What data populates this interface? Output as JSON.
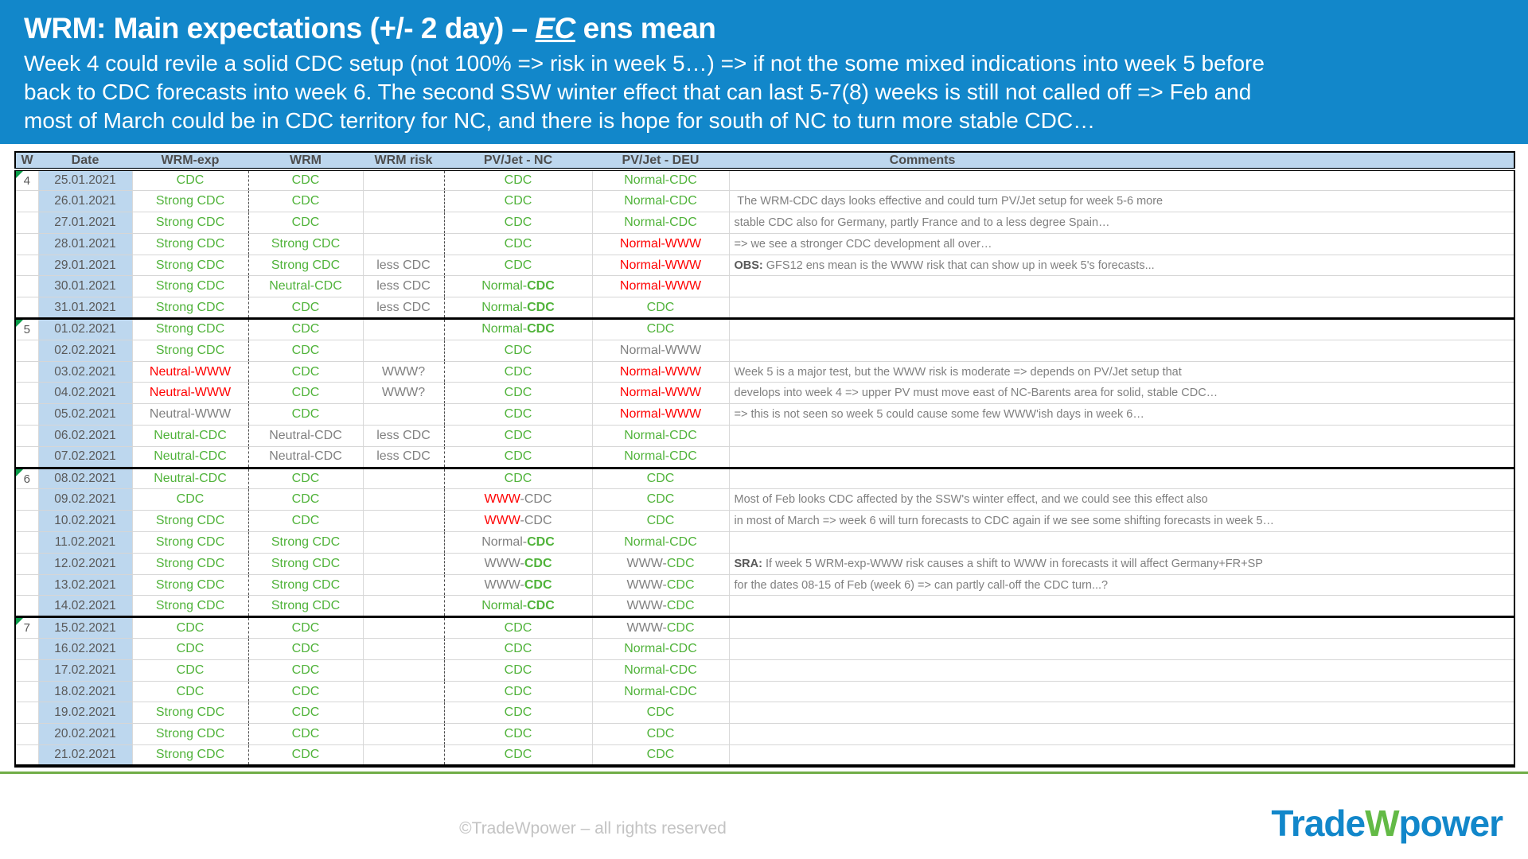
{
  "header": {
    "title_prefix": "WRM: Main expectations (+/- 2 day) – ",
    "title_ec": "EC",
    "title_suffix": " ens mean",
    "subtitle_lines": [
      "Week 4 could revile a solid CDC setup (not 100% => risk in week 5…) => if not the  some mixed indications into week 5 before",
      "back to CDC forecasts into week 6. The second SSW winter effect that can last 5-7(8) weeks is still not called off => Feb and",
      "most of March could be in CDC territory for NC, and there is hope for south of NC to turn more stable CDC…"
    ]
  },
  "colors": {
    "accent_blue": "#1287ca",
    "header_fill_light_blue": "#bdd7ee",
    "value_green": "#50b33a",
    "value_red": "#ff0000",
    "value_gray": "#808080",
    "text_dark_gray": "#595959",
    "footer_rule_green": "#70ad47",
    "logo_green": "#63ba46"
  },
  "table": {
    "columns": [
      "W",
      "Date",
      "WRM-exp",
      "WRM",
      "WRM risk",
      "PV/Jet - NC",
      "PV/Jet - DEU",
      "Comments"
    ],
    "rows": [
      {
        "w": "4",
        "ws": true,
        "date": "25.01.2021",
        "exp": [
          [
            "CDC",
            "g"
          ]
        ],
        "wrm": [
          [
            "CDC",
            "g"
          ]
        ],
        "risk": [],
        "nc": [
          [
            "CDC",
            "g"
          ]
        ],
        "deu": [
          [
            "Normal-CDC",
            "g"
          ]
        ],
        "com": []
      },
      {
        "w": "",
        "ws": false,
        "date": "26.01.2021",
        "exp": [
          [
            "Strong CDC",
            "g"
          ]
        ],
        "wrm": [
          [
            "CDC",
            "g"
          ]
        ],
        "risk": [],
        "nc": [
          [
            "CDC",
            "g"
          ]
        ],
        "deu": [
          [
            "Normal-CDC",
            "g"
          ]
        ],
        "com": [
          [
            " The WRM-CDC days looks effective and could turn PV/Jet setup for week 5-6 more",
            "y"
          ]
        ]
      },
      {
        "w": "",
        "ws": false,
        "date": "27.01.2021",
        "exp": [
          [
            "Strong CDC",
            "g"
          ]
        ],
        "wrm": [
          [
            "CDC",
            "g"
          ]
        ],
        "risk": [],
        "nc": [
          [
            "CDC",
            "g"
          ]
        ],
        "deu": [
          [
            "Normal-CDC",
            "g"
          ]
        ],
        "com": [
          [
            "stable CDC also for Germany, partly France and to a less degree Spain…",
            "y"
          ]
        ]
      },
      {
        "w": "",
        "ws": false,
        "date": "28.01.2021",
        "exp": [
          [
            "Strong CDC",
            "g"
          ]
        ],
        "wrm": [
          [
            "Strong CDC",
            "g"
          ]
        ],
        "risk": [],
        "nc": [
          [
            "CDC",
            "g"
          ]
        ],
        "deu": [
          [
            "Normal-WWW",
            "r"
          ]
        ],
        "com": [
          [
            "=> we see a stronger CDC development all over…",
            "y"
          ]
        ]
      },
      {
        "w": "",
        "ws": false,
        "date": "29.01.2021",
        "exp": [
          [
            "Strong CDC",
            "g"
          ]
        ],
        "wrm": [
          [
            "Strong CDC",
            "g"
          ]
        ],
        "risk": [
          [
            "less CDC",
            "y"
          ]
        ],
        "nc": [
          [
            "CDC",
            "g"
          ]
        ],
        "deu": [
          [
            "Normal-WWW",
            "r"
          ]
        ],
        "com": [
          [
            "OBS:",
            "d",
            true
          ],
          [
            " GFS12 ens mean is the WWW risk that can show up in week 5's forecasts...",
            "y"
          ]
        ]
      },
      {
        "w": "",
        "ws": false,
        "date": "30.01.2021",
        "exp": [
          [
            "Strong CDC",
            "g"
          ]
        ],
        "wrm": [
          [
            "Neutral-CDC",
            "g"
          ]
        ],
        "risk": [
          [
            "less CDC",
            "y"
          ]
        ],
        "nc": [
          [
            "Normal-",
            "g"
          ],
          [
            "CDC",
            "g",
            true
          ]
        ],
        "deu": [
          [
            "Normal-WWW",
            "r"
          ]
        ],
        "com": []
      },
      {
        "w": "",
        "ws": false,
        "date": "31.01.2021",
        "exp": [
          [
            "Strong CDC",
            "g"
          ]
        ],
        "wrm": [
          [
            "CDC",
            "g"
          ]
        ],
        "risk": [
          [
            "less CDC",
            "y"
          ]
        ],
        "nc": [
          [
            "Normal-",
            "g"
          ],
          [
            "CDC",
            "g",
            true
          ]
        ],
        "deu": [
          [
            "CDC",
            "g"
          ]
        ],
        "com": []
      },
      {
        "w": "5",
        "ws": true,
        "date": "01.02.2021",
        "exp": [
          [
            "Strong CDC",
            "g"
          ]
        ],
        "wrm": [
          [
            "CDC",
            "g"
          ]
        ],
        "risk": [],
        "nc": [
          [
            "Normal-",
            "g"
          ],
          [
            "CDC",
            "g",
            true
          ]
        ],
        "deu": [
          [
            "CDC",
            "g"
          ]
        ],
        "com": []
      },
      {
        "w": "",
        "ws": false,
        "date": "02.02.2021",
        "exp": [
          [
            "Strong CDC",
            "g"
          ]
        ],
        "wrm": [
          [
            "CDC",
            "g"
          ]
        ],
        "risk": [],
        "nc": [
          [
            "CDC",
            "g"
          ]
        ],
        "deu": [
          [
            "Normal-WWW",
            "y"
          ]
        ],
        "com": []
      },
      {
        "w": "",
        "ws": false,
        "date": "03.02.2021",
        "exp": [
          [
            "Neutral-WWW",
            "r"
          ]
        ],
        "wrm": [
          [
            "CDC",
            "g"
          ]
        ],
        "risk": [
          [
            "WWW?",
            "y"
          ]
        ],
        "nc": [
          [
            "CDC",
            "g"
          ]
        ],
        "deu": [
          [
            "Normal-WWW",
            "r"
          ]
        ],
        "com": [
          [
            "Week 5 is a major test, but the WWW risk is moderate => depends on PV/Jet setup that",
            "y"
          ]
        ]
      },
      {
        "w": "",
        "ws": false,
        "date": "04.02.2021",
        "exp": [
          [
            "Neutral-WWW",
            "r"
          ]
        ],
        "wrm": [
          [
            "CDC",
            "g"
          ]
        ],
        "risk": [
          [
            "WWW?",
            "y"
          ]
        ],
        "nc": [
          [
            "CDC",
            "g"
          ]
        ],
        "deu": [
          [
            "Normal-WWW",
            "r"
          ]
        ],
        "com": [
          [
            "develops into week 4 => upper PV must move east of NC-Barents area for solid, stable CDC…",
            "y"
          ]
        ]
      },
      {
        "w": "",
        "ws": false,
        "date": "05.02.2021",
        "exp": [
          [
            "Neutral-WWW",
            "y"
          ]
        ],
        "wrm": [
          [
            "CDC",
            "g"
          ]
        ],
        "risk": [],
        "nc": [
          [
            "CDC",
            "g"
          ]
        ],
        "deu": [
          [
            "Normal-WWW",
            "r"
          ]
        ],
        "com": [
          [
            "=> this is not seen so week 5 could cause some few WWW'ish days in week 6…",
            "y"
          ]
        ]
      },
      {
        "w": "",
        "ws": false,
        "date": "06.02.2021",
        "exp": [
          [
            "Neutral-CDC",
            "g"
          ]
        ],
        "wrm": [
          [
            "Neutral-CDC",
            "y"
          ]
        ],
        "risk": [
          [
            "less CDC",
            "y"
          ]
        ],
        "nc": [
          [
            "CDC",
            "g"
          ]
        ],
        "deu": [
          [
            "Normal-CDC",
            "g"
          ]
        ],
        "com": []
      },
      {
        "w": "",
        "ws": false,
        "date": "07.02.2021",
        "exp": [
          [
            "Neutral-CDC",
            "g"
          ]
        ],
        "wrm": [
          [
            "Neutral-CDC",
            "y"
          ]
        ],
        "risk": [
          [
            "less CDC",
            "y"
          ]
        ],
        "nc": [
          [
            "CDC",
            "g"
          ]
        ],
        "deu": [
          [
            "Normal-CDC",
            "g"
          ]
        ],
        "com": []
      },
      {
        "w": "6",
        "ws": true,
        "date": "08.02.2021",
        "exp": [
          [
            "Neutral-CDC",
            "g"
          ]
        ],
        "wrm": [
          [
            "CDC",
            "g"
          ]
        ],
        "risk": [],
        "nc": [
          [
            "CDC",
            "g"
          ]
        ],
        "deu": [
          [
            "CDC",
            "g"
          ]
        ],
        "com": []
      },
      {
        "w": "",
        "ws": false,
        "date": "09.02.2021",
        "exp": [
          [
            "CDC",
            "g"
          ]
        ],
        "wrm": [
          [
            "CDC",
            "g"
          ]
        ],
        "risk": [],
        "nc": [
          [
            "WWW",
            "r"
          ],
          [
            "-CDC",
            "y"
          ]
        ],
        "deu": [
          [
            "CDC",
            "g"
          ]
        ],
        "com": [
          [
            "Most of Feb looks CDC affected by the SSW's winter effect, and we could see this effect also",
            "y"
          ]
        ]
      },
      {
        "w": "",
        "ws": false,
        "date": "10.02.2021",
        "exp": [
          [
            "Strong CDC",
            "g"
          ]
        ],
        "wrm": [
          [
            "CDC",
            "g"
          ]
        ],
        "risk": [],
        "nc": [
          [
            "WWW",
            "r"
          ],
          [
            "-CDC",
            "y"
          ]
        ],
        "deu": [
          [
            "CDC",
            "g"
          ]
        ],
        "com": [
          [
            "in most of March => week 6 will turn forecasts to CDC again if we see some shifting forecasts in week 5…",
            "y"
          ]
        ]
      },
      {
        "w": "",
        "ws": false,
        "date": "11.02.2021",
        "exp": [
          [
            "Strong CDC",
            "g"
          ]
        ],
        "wrm": [
          [
            "Strong CDC",
            "g"
          ]
        ],
        "risk": [],
        "nc": [
          [
            "Normal-",
            "y"
          ],
          [
            "CDC",
            "g",
            true
          ]
        ],
        "deu": [
          [
            "Normal-CDC",
            "g"
          ]
        ],
        "com": []
      },
      {
        "w": "",
        "ws": false,
        "date": "12.02.2021",
        "exp": [
          [
            "Strong CDC",
            "g"
          ]
        ],
        "wrm": [
          [
            "Strong CDC",
            "g"
          ]
        ],
        "risk": [],
        "nc": [
          [
            "WWW-",
            "y"
          ],
          [
            "CDC",
            "g",
            true
          ]
        ],
        "deu": [
          [
            "WWW-",
            "y"
          ],
          [
            "CDC",
            "g"
          ]
        ],
        "com": [
          [
            "SRA:",
            "d",
            true
          ],
          [
            " If week 5 WRM-exp-WWW risk causes a shift to WWW in forecasts it will affect Germany+FR+SP",
            "y"
          ]
        ]
      },
      {
        "w": "",
        "ws": false,
        "date": "13.02.2021",
        "exp": [
          [
            "Strong CDC",
            "g"
          ]
        ],
        "wrm": [
          [
            "Strong CDC",
            "g"
          ]
        ],
        "risk": [],
        "nc": [
          [
            "WWW-",
            "y"
          ],
          [
            "CDC",
            "g",
            true
          ]
        ],
        "deu": [
          [
            "WWW-",
            "y"
          ],
          [
            "CDC",
            "g"
          ]
        ],
        "com": [
          [
            "for the dates 08-15 of Feb (week 6) => can partly call-off the CDC turn...?",
            "y"
          ]
        ]
      },
      {
        "w": "",
        "ws": false,
        "date": "14.02.2021",
        "exp": [
          [
            "Strong CDC",
            "g"
          ]
        ],
        "wrm": [
          [
            "Strong CDC",
            "g"
          ]
        ],
        "risk": [],
        "nc": [
          [
            "Normal-",
            "g"
          ],
          [
            "CDC",
            "g",
            true
          ]
        ],
        "deu": [
          [
            "WWW-",
            "y"
          ],
          [
            "CDC",
            "g"
          ]
        ],
        "com": []
      },
      {
        "w": "7",
        "ws": true,
        "date": "15.02.2021",
        "exp": [
          [
            "CDC",
            "g"
          ]
        ],
        "wrm": [
          [
            "CDC",
            "g"
          ]
        ],
        "risk": [],
        "nc": [
          [
            "CDC",
            "g"
          ]
        ],
        "deu": [
          [
            "WWW-",
            "y"
          ],
          [
            "CDC",
            "g"
          ]
        ],
        "com": []
      },
      {
        "w": "",
        "ws": false,
        "date": "16.02.2021",
        "exp": [
          [
            "CDC",
            "g"
          ]
        ],
        "wrm": [
          [
            "CDC",
            "g"
          ]
        ],
        "risk": [],
        "nc": [
          [
            "CDC",
            "g"
          ]
        ],
        "deu": [
          [
            "Normal-CDC",
            "g"
          ]
        ],
        "com": []
      },
      {
        "w": "",
        "ws": false,
        "date": "17.02.2021",
        "exp": [
          [
            "CDC",
            "g"
          ]
        ],
        "wrm": [
          [
            "CDC",
            "g"
          ]
        ],
        "risk": [],
        "nc": [
          [
            "CDC",
            "g"
          ]
        ],
        "deu": [
          [
            "Normal-CDC",
            "g"
          ]
        ],
        "com": []
      },
      {
        "w": "",
        "ws": false,
        "date": "18.02.2021",
        "exp": [
          [
            "CDC",
            "g"
          ]
        ],
        "wrm": [
          [
            "CDC",
            "g"
          ]
        ],
        "risk": [],
        "nc": [
          [
            "CDC",
            "g"
          ]
        ],
        "deu": [
          [
            "Normal-CDC",
            "g"
          ]
        ],
        "com": []
      },
      {
        "w": "",
        "ws": false,
        "date": "19.02.2021",
        "exp": [
          [
            "Strong CDC",
            "g"
          ]
        ],
        "wrm": [
          [
            "CDC",
            "g"
          ]
        ],
        "risk": [],
        "nc": [
          [
            "CDC",
            "g"
          ]
        ],
        "deu": [
          [
            "CDC",
            "g"
          ]
        ],
        "com": []
      },
      {
        "w": "",
        "ws": false,
        "date": "20.02.2021",
        "exp": [
          [
            "Strong CDC",
            "g"
          ]
        ],
        "wrm": [
          [
            "CDC",
            "g"
          ]
        ],
        "risk": [],
        "nc": [
          [
            "CDC",
            "g"
          ]
        ],
        "deu": [
          [
            "CDC",
            "g"
          ]
        ],
        "com": []
      },
      {
        "w": "",
        "ws": false,
        "date": "21.02.2021",
        "exp": [
          [
            "Strong CDC",
            "g"
          ]
        ],
        "wrm": [
          [
            "CDC",
            "g"
          ]
        ],
        "risk": [],
        "nc": [
          [
            "CDC",
            "g"
          ]
        ],
        "deu": [
          [
            "CDC",
            "g"
          ]
        ],
        "com": []
      }
    ]
  },
  "footer": {
    "copyright": "©TradeWpower – all rights reserved",
    "logo_part1": "Trade",
    "logo_part2": "W",
    "logo_part3": "power"
  }
}
